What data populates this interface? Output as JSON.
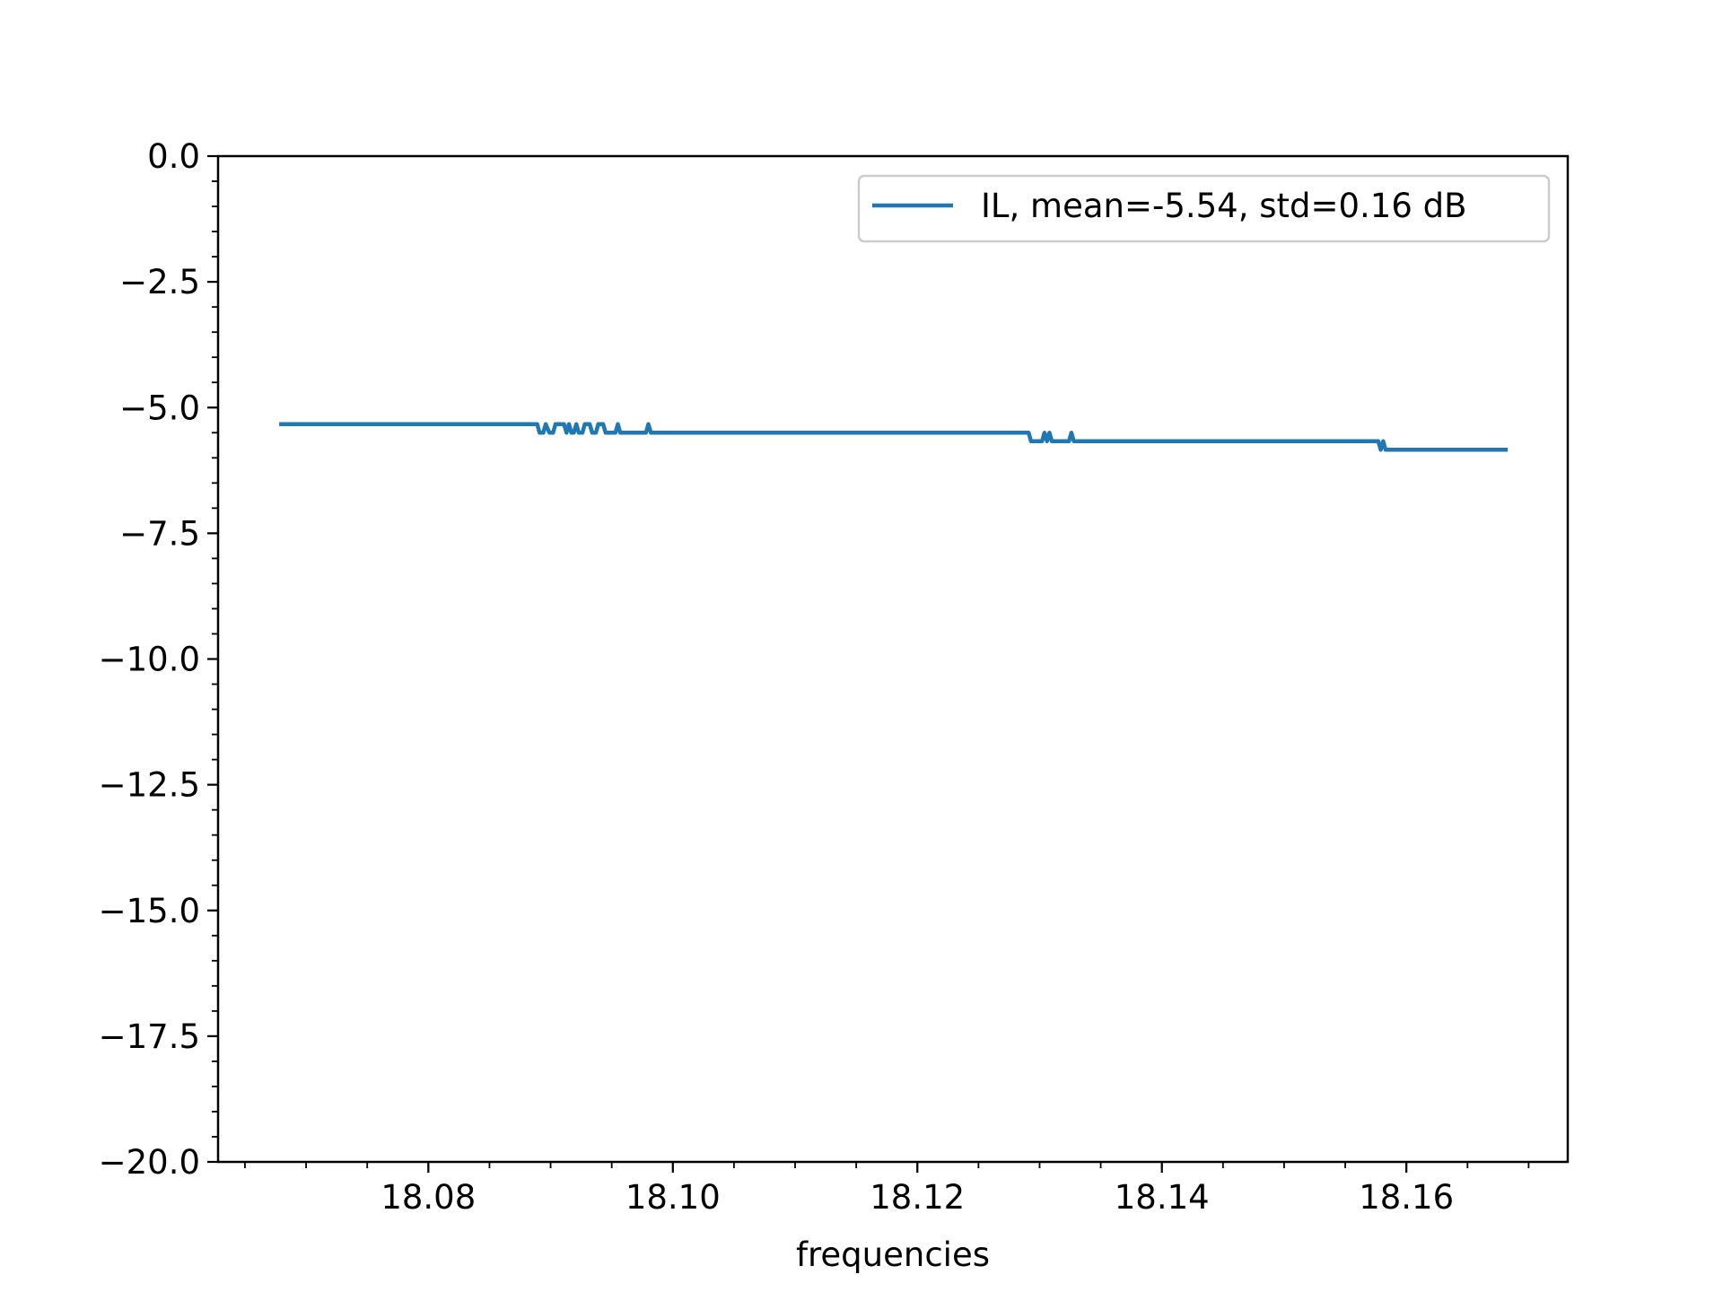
{
  "chart_data": {
    "type": "line",
    "xlabel": "frequencies",
    "ylabel": "",
    "title": "",
    "xlim": [
      18.0628,
      18.1732
    ],
    "ylim": [
      -20.0,
      0.0
    ],
    "x_ticks": [
      18.08,
      18.1,
      18.12,
      18.14,
      18.16
    ],
    "x_tick_labels": [
      "18.08",
      "18.10",
      "18.12",
      "18.14",
      "18.16"
    ],
    "y_ticks": [
      0.0,
      -2.5,
      -5.0,
      -7.5,
      -10.0,
      -12.5,
      -15.0,
      -17.5,
      -20.0
    ],
    "y_tick_labels": [
      "0.0",
      "−2.5",
      "−5.0",
      "−7.5",
      "−10.0",
      "−12.5",
      "−15.0",
      "−17.5",
      "−20.0"
    ],
    "x_minor_step": 0.005,
    "y_minor_step": 0.5,
    "grid": false,
    "legend_position": "top-right",
    "series": [
      {
        "name": "IL, mean=-5.54, std=0.16 dB",
        "color": "#1f77b4",
        "points": [
          [
            18.0678,
            -5.33
          ],
          [
            18.0889,
            -5.33
          ],
          [
            18.0891,
            -5.5
          ],
          [
            18.0894,
            -5.5
          ],
          [
            18.0896,
            -5.33
          ],
          [
            18.0899,
            -5.5
          ],
          [
            18.0902,
            -5.5
          ],
          [
            18.0904,
            -5.33
          ],
          [
            18.0911,
            -5.33
          ],
          [
            18.0913,
            -5.5
          ],
          [
            18.0915,
            -5.33
          ],
          [
            18.0917,
            -5.5
          ],
          [
            18.0919,
            -5.5
          ],
          [
            18.0921,
            -5.33
          ],
          [
            18.0923,
            -5.5
          ],
          [
            18.0926,
            -5.5
          ],
          [
            18.0928,
            -5.33
          ],
          [
            18.0932,
            -5.33
          ],
          [
            18.0934,
            -5.5
          ],
          [
            18.0937,
            -5.5
          ],
          [
            18.0939,
            -5.33
          ],
          [
            18.0943,
            -5.33
          ],
          [
            18.0945,
            -5.5
          ],
          [
            18.0953,
            -5.5
          ],
          [
            18.0955,
            -5.33
          ],
          [
            18.0957,
            -5.5
          ],
          [
            18.0978,
            -5.5
          ],
          [
            18.098,
            -5.33
          ],
          [
            18.0982,
            -5.5
          ],
          [
            18.1291,
            -5.5
          ],
          [
            18.1293,
            -5.67
          ],
          [
            18.1302,
            -5.67
          ],
          [
            18.1304,
            -5.5
          ],
          [
            18.1306,
            -5.67
          ],
          [
            18.1308,
            -5.5
          ],
          [
            18.131,
            -5.67
          ],
          [
            18.1324,
            -5.67
          ],
          [
            18.1326,
            -5.5
          ],
          [
            18.1328,
            -5.67
          ],
          [
            18.1577,
            -5.67
          ],
          [
            18.1579,
            -5.84
          ],
          [
            18.1581,
            -5.67
          ],
          [
            18.1583,
            -5.84
          ],
          [
            18.1683,
            -5.84
          ]
        ]
      }
    ]
  }
}
